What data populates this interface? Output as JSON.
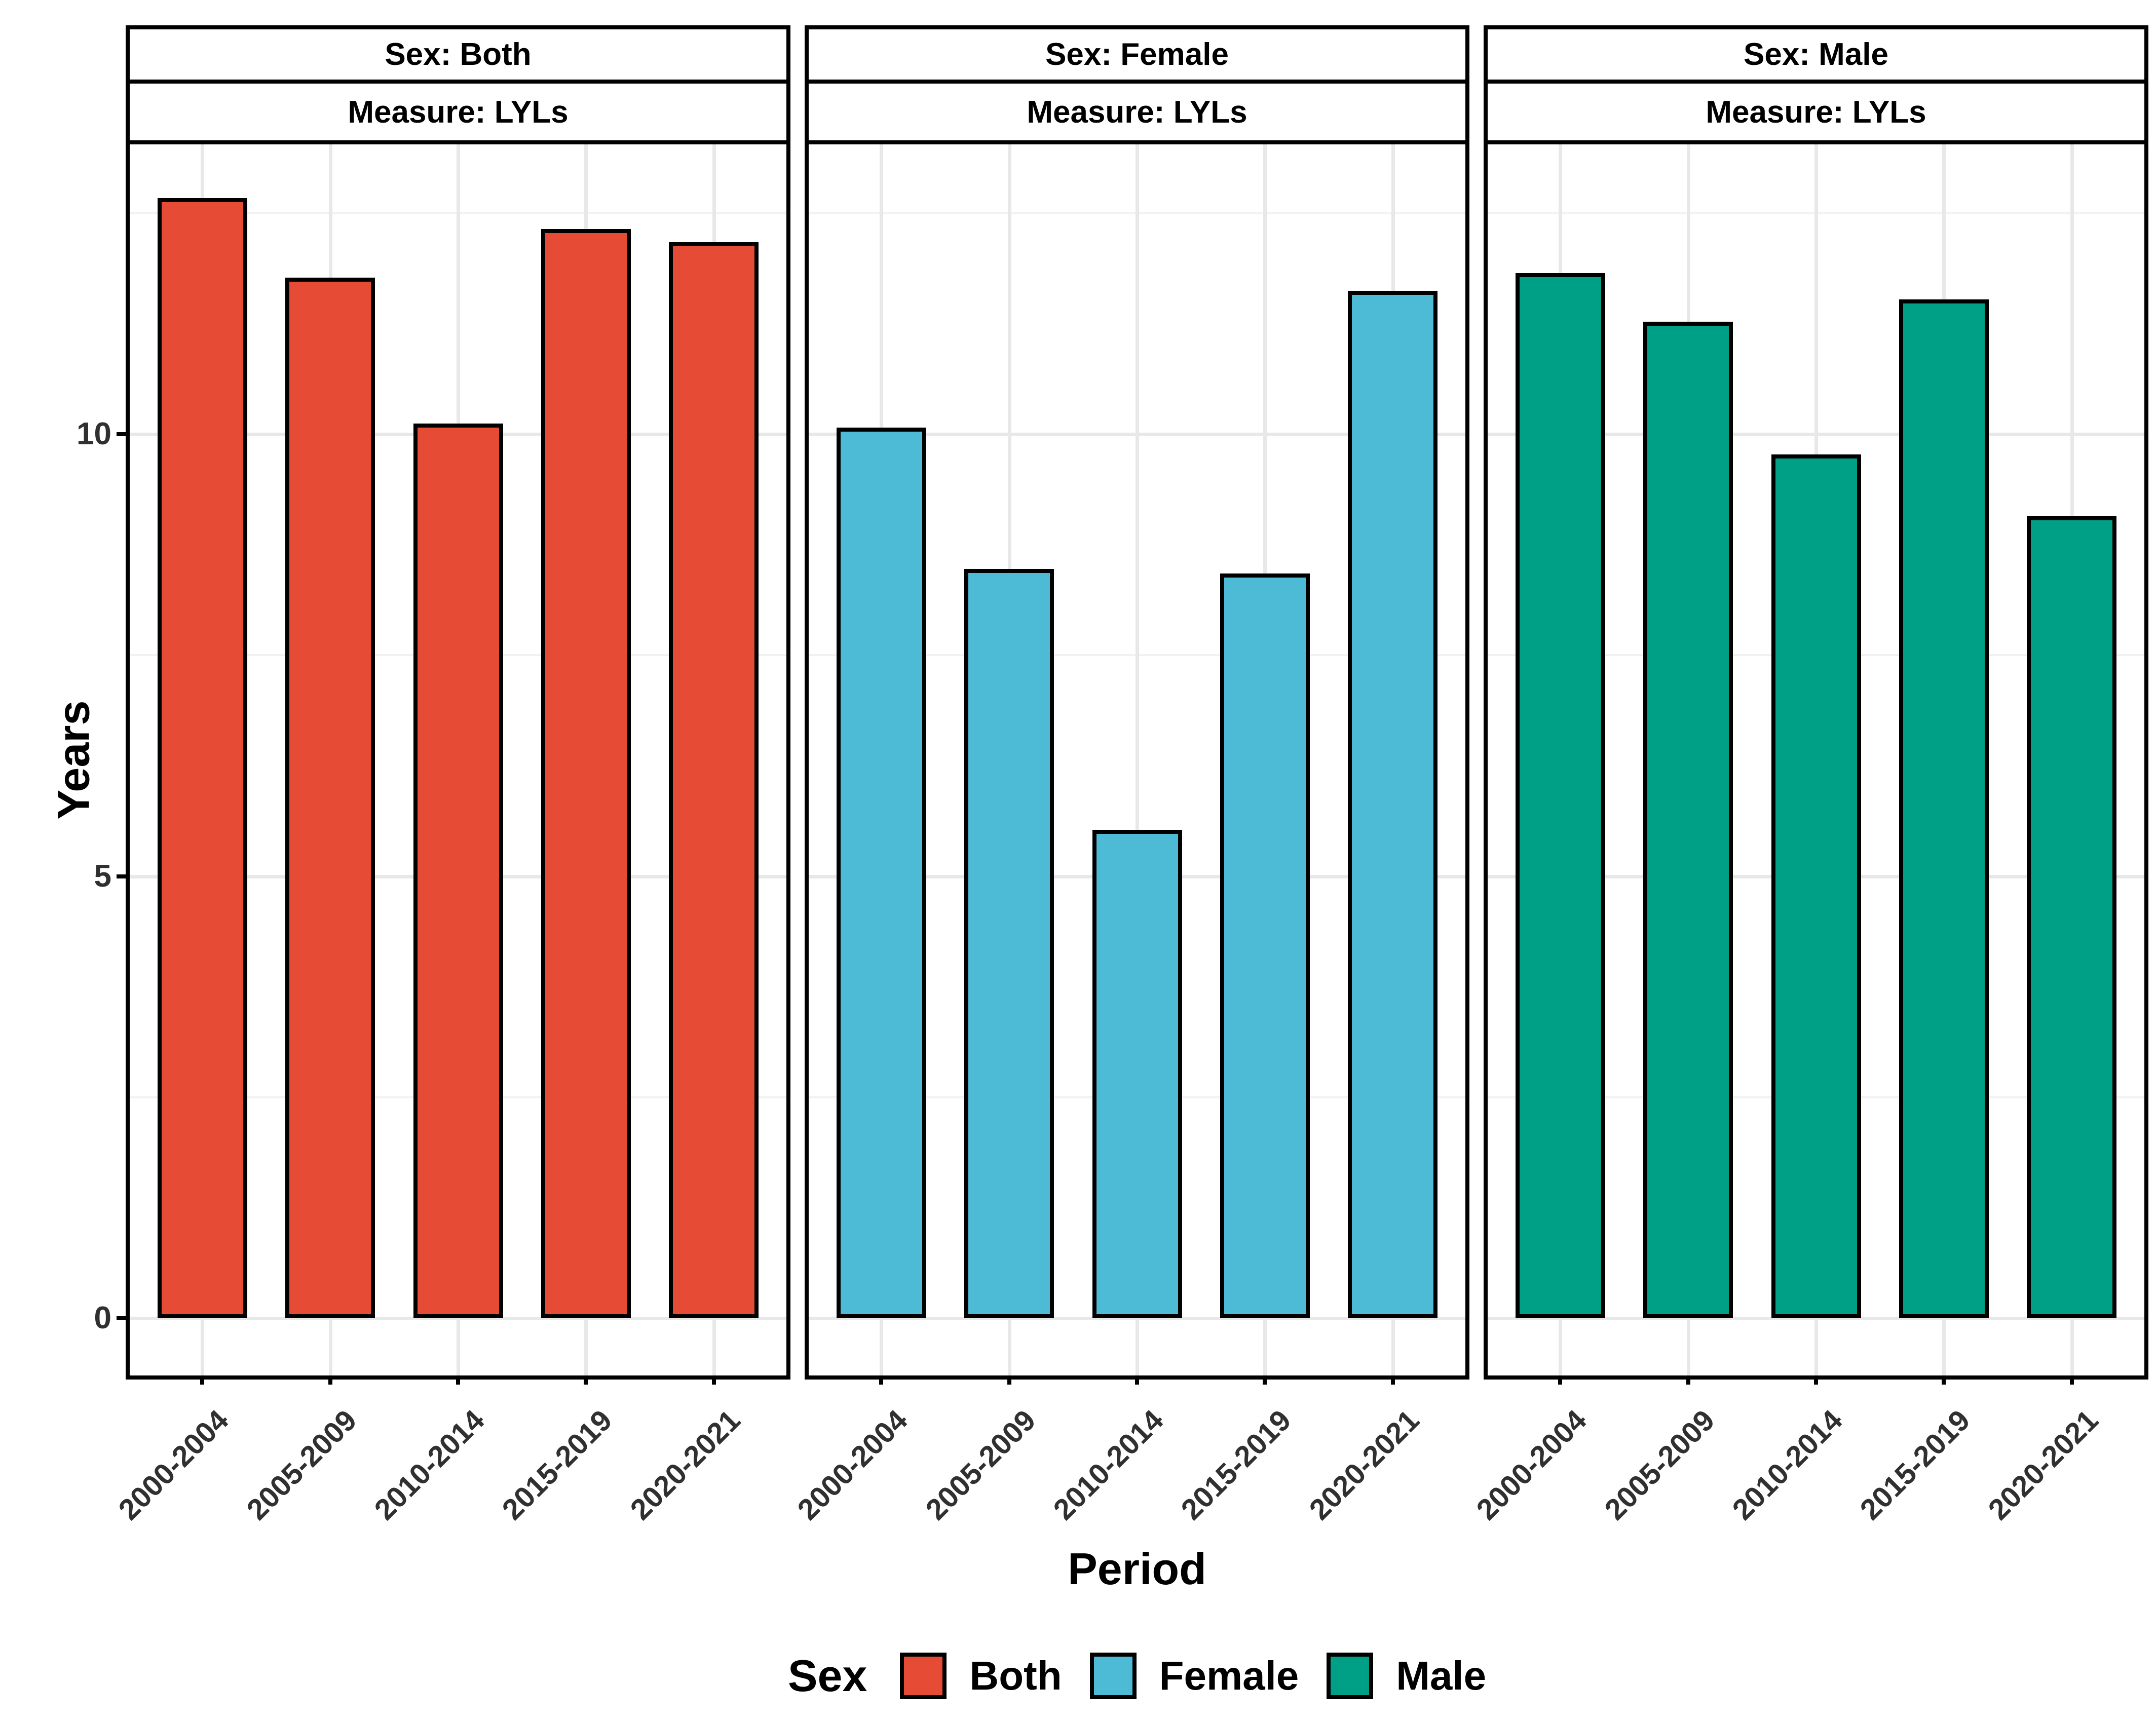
{
  "figure": {
    "y_axis_title": "Years",
    "x_axis_title": "Period",
    "legend_title": "Sex"
  },
  "chart_data": {
    "type": "bar",
    "title": "",
    "xlabel": "Period",
    "ylabel": "Years",
    "categories": [
      "2000-2004",
      "2005-2009",
      "2010-2014",
      "2015-2019",
      "2020-2021"
    ],
    "facets": [
      {
        "strip_top": "Sex: Both",
        "strip_bottom": "Measure: LYLs",
        "series_name": "Both",
        "color": "#E64B35",
        "values": [
          12.65,
          11.75,
          10.1,
          12.3,
          12.15
        ]
      },
      {
        "strip_top": "Sex: Female",
        "strip_bottom": "Measure: LYLs",
        "series_name": "Female",
        "color": "#4DBBD5",
        "values": [
          10.05,
          8.45,
          5.5,
          8.4,
          11.6
        ]
      },
      {
        "strip_top": "Sex: Male",
        "strip_bottom": "Measure: LYLs",
        "series_name": "Male",
        "color": "#00A087",
        "values": [
          11.8,
          11.25,
          9.75,
          11.5,
          9.05
        ]
      }
    ],
    "ylim": [
      0,
      13.3
    ],
    "yticks": [
      0,
      5,
      10
    ],
    "grid": {
      "major": [
        0,
        5,
        10
      ],
      "minor": [
        2.5,
        7.5,
        12.5
      ],
      "vertical_on_categories": true
    },
    "legend": {
      "title": "Sex",
      "position": "bottom",
      "entries": [
        {
          "label": "Both",
          "color": "#E64B35"
        },
        {
          "label": "Female",
          "color": "#4DBBD5"
        },
        {
          "label": "Male",
          "color": "#00A087"
        }
      ]
    }
  },
  "style": {
    "bar_border_color": "#000000",
    "panel_border_color": "#000000",
    "grid_major_color": "#e8e8e8",
    "grid_minor_color": "#f2f2f2",
    "tick_text_color": "#303030",
    "background": "#ffffff"
  }
}
